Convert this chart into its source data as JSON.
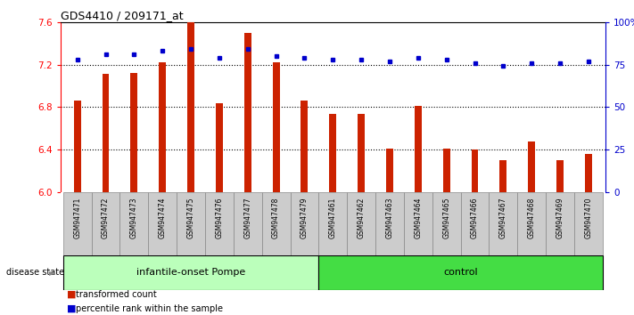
{
  "title": "GDS4410 / 209171_at",
  "samples": [
    "GSM947471",
    "GSM947472",
    "GSM947473",
    "GSM947474",
    "GSM947475",
    "GSM947476",
    "GSM947477",
    "GSM947478",
    "GSM947479",
    "GSM947461",
    "GSM947462",
    "GSM947463",
    "GSM947464",
    "GSM947465",
    "GSM947466",
    "GSM947467",
    "GSM947468",
    "GSM947469",
    "GSM947470"
  ],
  "red_values": [
    6.86,
    7.11,
    7.12,
    7.22,
    7.6,
    6.84,
    7.5,
    7.22,
    6.86,
    6.74,
    6.74,
    6.41,
    6.81,
    6.41,
    6.4,
    6.3,
    6.48,
    6.3,
    6.36
  ],
  "blue_values": [
    78,
    81,
    81,
    83,
    84,
    79,
    84,
    80,
    79,
    78,
    78,
    77,
    79,
    78,
    76,
    74,
    76,
    76,
    77
  ],
  "group1_label": "infantile-onset Pompe",
  "group2_label": "control",
  "group1_count": 9,
  "group2_count": 10,
  "ylim_left": [
    6.0,
    7.6
  ],
  "ylim_right": [
    0,
    100
  ],
  "yticks_left": [
    6.0,
    6.4,
    6.8,
    7.2,
    7.6
  ],
  "yticks_right": [
    0,
    25,
    50,
    75,
    100
  ],
  "ytick_labels_right": [
    "0",
    "25",
    "50",
    "75",
    "100%"
  ],
  "bar_color": "#CC2200",
  "dot_color": "#0000CC",
  "group1_bg": "#BBFFBB",
  "group2_bg": "#44DD44",
  "sample_bg": "#CCCCCC",
  "legend_red_label": "transformed count",
  "legend_blue_label": "percentile rank within the sample",
  "baseline": 6.0,
  "bar_width": 0.25
}
